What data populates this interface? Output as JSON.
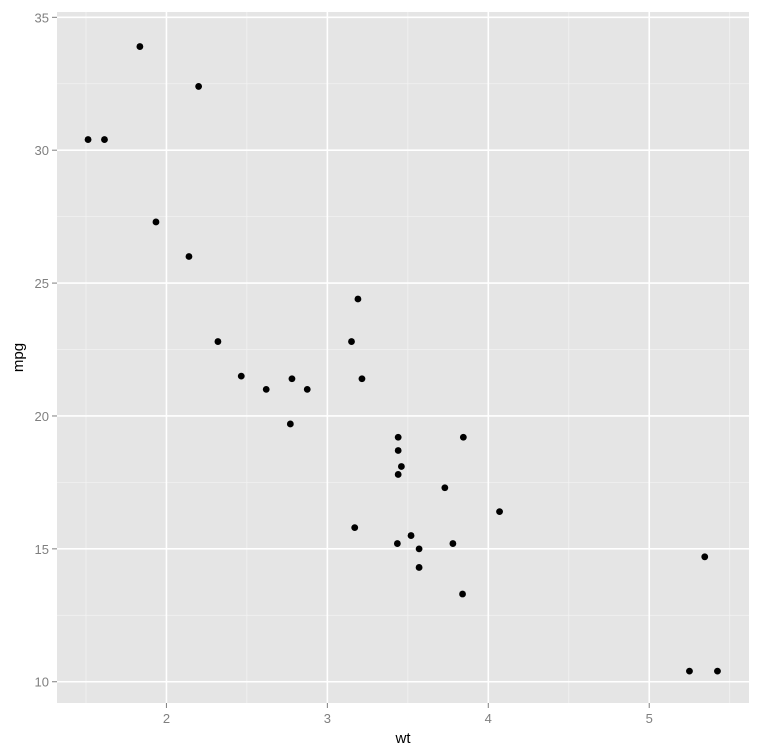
{
  "chart_data": {
    "type": "scatter",
    "title": "",
    "xlabel": "wt",
    "ylabel": "mpg",
    "xlim": [
      1.32,
      5.62
    ],
    "ylim": [
      9.2,
      35.2
    ],
    "xticks": [
      2,
      3,
      4,
      5
    ],
    "yticks": [
      10,
      15,
      20,
      25,
      30,
      35
    ],
    "grid": true,
    "legend": "none",
    "colors": {
      "panel": "#e5e5e5",
      "grid_major": "#ffffff",
      "grid_minor": "#f2f2f2",
      "point": "#000000",
      "tick_label": "#7f7f7f"
    },
    "points": [
      {
        "x": 2.62,
        "y": 21.0
      },
      {
        "x": 2.875,
        "y": 21.0
      },
      {
        "x": 2.32,
        "y": 22.8
      },
      {
        "x": 3.215,
        "y": 21.4
      },
      {
        "x": 3.44,
        "y": 18.7
      },
      {
        "x": 3.46,
        "y": 18.1
      },
      {
        "x": 3.57,
        "y": 14.3
      },
      {
        "x": 3.19,
        "y": 24.4
      },
      {
        "x": 3.15,
        "y": 22.8
      },
      {
        "x": 3.44,
        "y": 19.2
      },
      {
        "x": 3.44,
        "y": 17.8
      },
      {
        "x": 4.07,
        "y": 16.4
      },
      {
        "x": 3.73,
        "y": 17.3
      },
      {
        "x": 3.78,
        "y": 15.2
      },
      {
        "x": 5.25,
        "y": 10.4
      },
      {
        "x": 5.424,
        "y": 10.4
      },
      {
        "x": 5.345,
        "y": 14.7
      },
      {
        "x": 2.2,
        "y": 32.4
      },
      {
        "x": 1.615,
        "y": 30.4
      },
      {
        "x": 1.835,
        "y": 33.9
      },
      {
        "x": 2.465,
        "y": 21.5
      },
      {
        "x": 3.52,
        "y": 15.5
      },
      {
        "x": 3.435,
        "y": 15.2
      },
      {
        "x": 3.84,
        "y": 13.3
      },
      {
        "x": 3.845,
        "y": 19.2
      },
      {
        "x": 1.935,
        "y": 27.3
      },
      {
        "x": 2.14,
        "y": 26.0
      },
      {
        "x": 1.513,
        "y": 30.4
      },
      {
        "x": 3.17,
        "y": 15.8
      },
      {
        "x": 2.77,
        "y": 19.7
      },
      {
        "x": 3.57,
        "y": 15.0
      },
      {
        "x": 2.78,
        "y": 21.4
      }
    ]
  }
}
